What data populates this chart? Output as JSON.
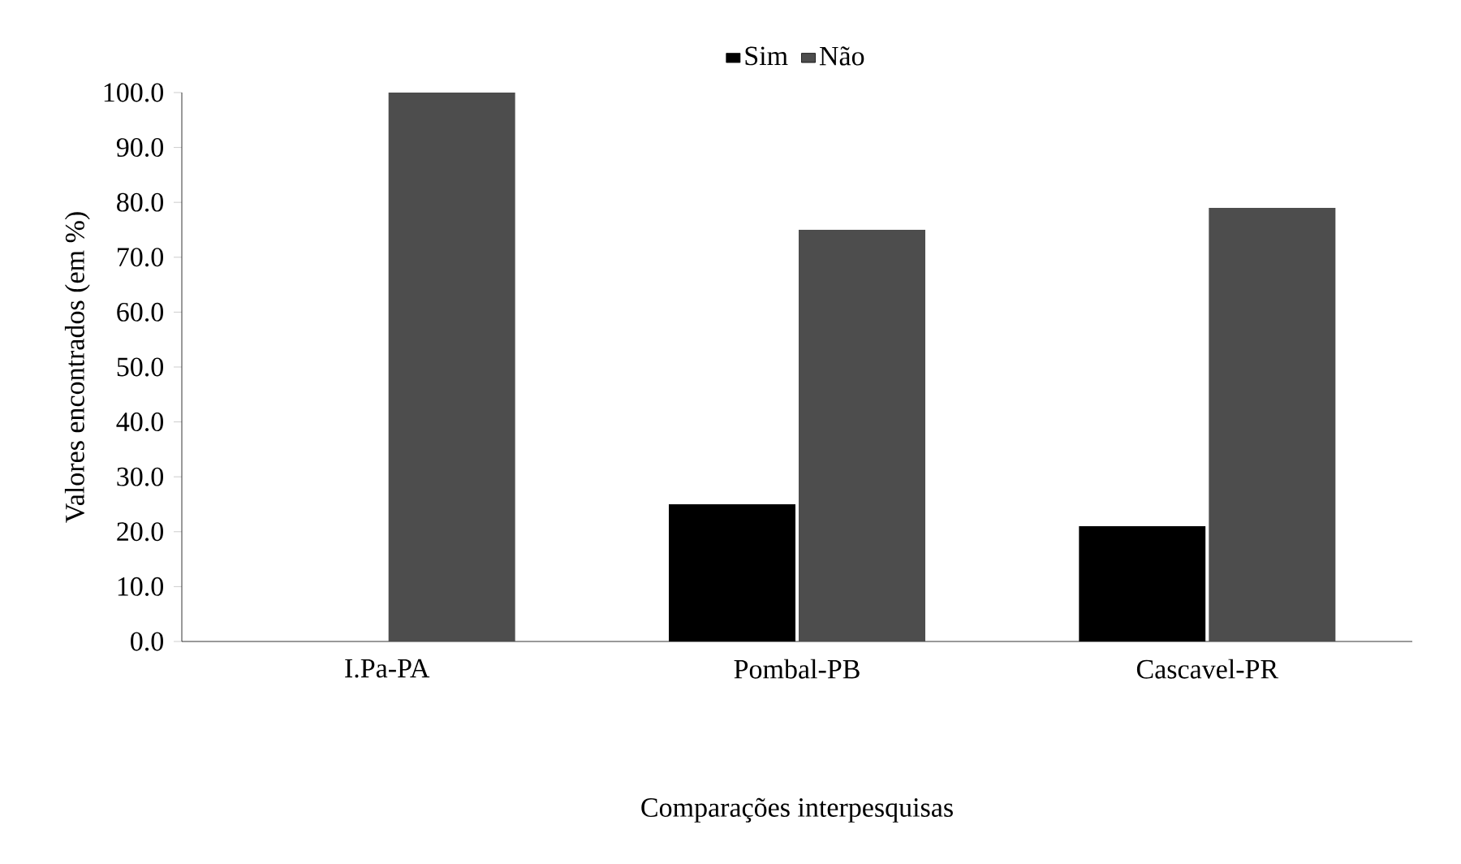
{
  "chart_data": {
    "type": "bar",
    "xlabel": "Comparações interpesquisas",
    "ylabel": "Valores encontrados (em %)",
    "categories": [
      "I.Pa-PA",
      "Pombal-PB",
      "Cascavel-PR"
    ],
    "series": [
      {
        "name": "Sim",
        "color": "#000000",
        "values": [
          0,
          25,
          21
        ]
      },
      {
        "name": "Não",
        "color": "#4d4d4d",
        "values": [
          100,
          75,
          79
        ]
      }
    ],
    "ylim": [
      0,
      100
    ],
    "yticks": [
      {
        "value": 0,
        "label": "0.0"
      },
      {
        "value": 10,
        "label": "10.0"
      },
      {
        "value": 20,
        "label": "20.0"
      },
      {
        "value": 30,
        "label": "30.0"
      },
      {
        "value": 40,
        "label": "40.0"
      },
      {
        "value": 50,
        "label": "50.0"
      },
      {
        "value": 60,
        "label": "60.0"
      },
      {
        "value": 70,
        "label": "70.0"
      },
      {
        "value": 80,
        "label": "80.0"
      },
      {
        "value": 90,
        "label": "90.0"
      },
      {
        "value": 100,
        "label": "100.0"
      }
    ],
    "legend": "top",
    "grid": false
  }
}
